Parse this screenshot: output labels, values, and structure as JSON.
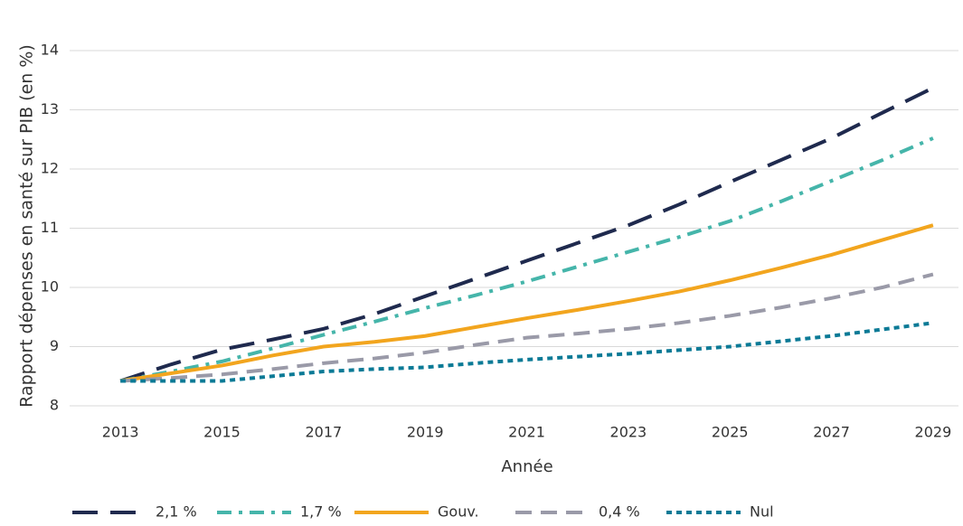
{
  "chart_data": {
    "type": "line",
    "x_label": "Année",
    "y_label": "Rapport dépenses en santé sur PIB (en %)",
    "x": [
      2013,
      2014,
      2015,
      2016,
      2017,
      2018,
      2019,
      2020,
      2021,
      2022,
      2023,
      2024,
      2025,
      2026,
      2027,
      2028,
      2029
    ],
    "xlim": [
      2012,
      2029.5
    ],
    "xticks": [
      2013,
      2015,
      2017,
      2019,
      2021,
      2023,
      2025,
      2027,
      2029
    ],
    "ylim": [
      8,
      14
    ],
    "yticks": [
      8,
      9,
      10,
      11,
      12,
      13,
      14
    ],
    "grid": true,
    "legend": "bottom",
    "series": [
      {
        "name": "2,1 %",
        "color": "#1f2a4e",
        "dash": "long-dash",
        "values": [
          8.42,
          8.7,
          8.95,
          9.12,
          9.3,
          9.55,
          9.85,
          10.15,
          10.45,
          10.75,
          11.05,
          11.4,
          11.78,
          12.15,
          12.52,
          12.95,
          13.37
        ]
      },
      {
        "name": "1,7 %",
        "color": "#45b5aa",
        "dash": "dash-dot",
        "values": [
          8.42,
          8.58,
          8.75,
          8.97,
          9.2,
          9.42,
          9.65,
          9.87,
          10.1,
          10.35,
          10.6,
          10.85,
          11.12,
          11.45,
          11.8,
          12.15,
          12.52
        ]
      },
      {
        "name": "Gouv.",
        "color": "#f2a51e",
        "dash": "solid",
        "values": [
          8.42,
          8.55,
          8.68,
          8.85,
          9.0,
          9.08,
          9.18,
          9.33,
          9.48,
          9.62,
          9.77,
          9.93,
          10.12,
          10.33,
          10.55,
          10.8,
          11.05
        ]
      },
      {
        "name": "0,4 %",
        "color": "#9a9aa8",
        "dash": "dash",
        "values": [
          8.42,
          8.47,
          8.53,
          8.62,
          8.72,
          8.8,
          8.9,
          9.03,
          9.15,
          9.22,
          9.3,
          9.4,
          9.52,
          9.66,
          9.82,
          10.0,
          10.22
        ]
      },
      {
        "name": "Nul",
        "color": "#0b7a96",
        "dash": "dot",
        "values": [
          8.42,
          8.42,
          8.42,
          8.5,
          8.58,
          8.62,
          8.65,
          8.72,
          8.78,
          8.83,
          8.88,
          8.94,
          9.0,
          9.09,
          9.18,
          9.29,
          9.4
        ]
      }
    ]
  }
}
